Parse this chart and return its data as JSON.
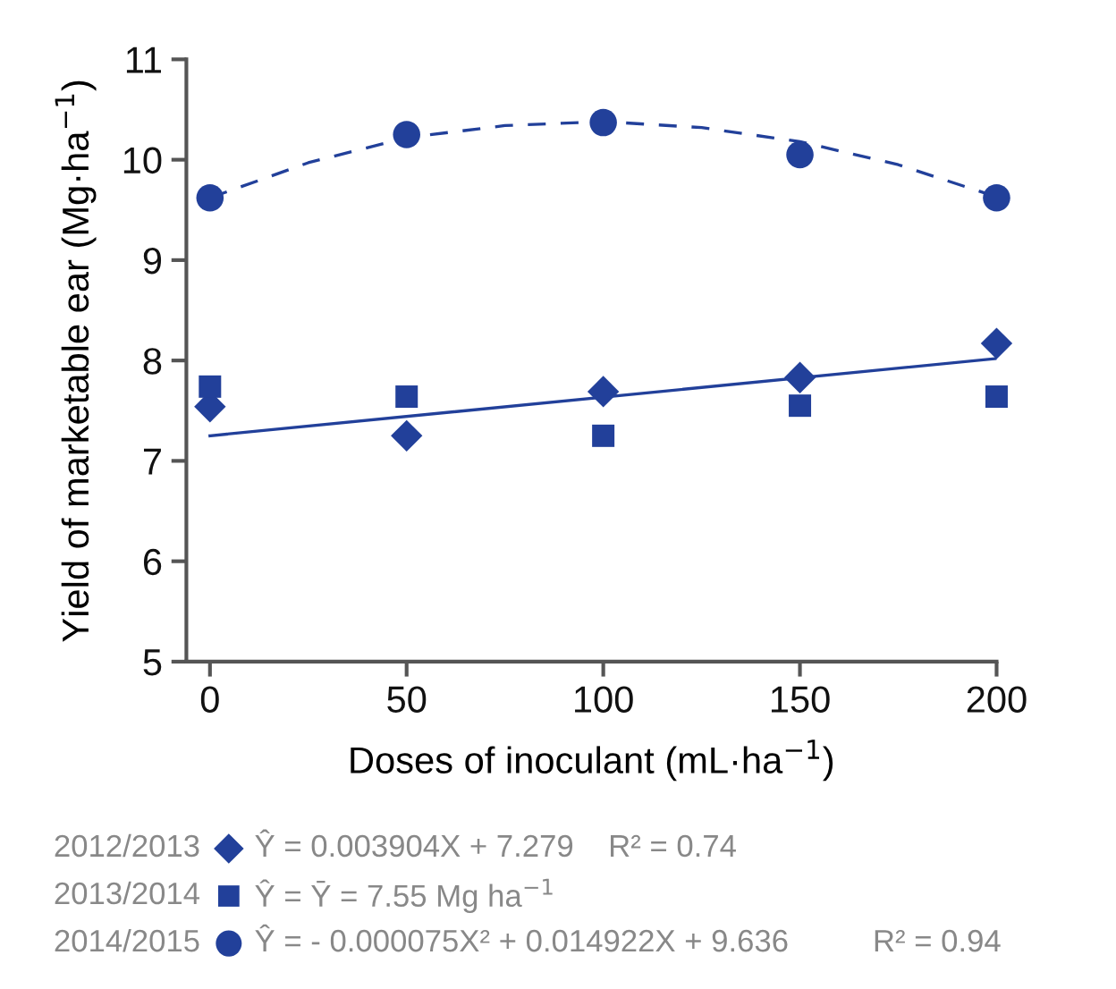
{
  "chart_data": {
    "type": "scatter",
    "xlabel": "Doses of inoculant (mL·ha$^{−1}$)",
    "ylabel": "Yield of marketable ear (Mg·ha$^{−1}$)",
    "x": [
      0,
      50,
      100,
      150,
      200
    ],
    "xlim": [
      -6,
      200
    ],
    "xticks": [
      0,
      50,
      100,
      150,
      200
    ],
    "ylim": [
      5,
      11
    ],
    "yticks": [
      5,
      6,
      7,
      8,
      9,
      10,
      11
    ],
    "grid": false,
    "legend": "bottom",
    "series": [
      {
        "name": "2012/2013",
        "color": "#22409a",
        "marker": "diamond",
        "values": [
          7.54,
          7.25,
          7.69,
          7.83,
          8.17
        ]
      },
      {
        "name": "2013/2014",
        "color": "#22409a",
        "marker": "square",
        "values": [
          7.74,
          7.64,
          7.25,
          7.55,
          7.64
        ]
      },
      {
        "name": "2014/2015",
        "color": "#22409a",
        "marker": "circle",
        "values": [
          9.62,
          10.25,
          10.37,
          10.05,
          9.62
        ]
      },
      {
        "type": "line",
        "color": "#22409a",
        "marker": "none",
        "line_style": "solid",
        "x": [
          0,
          200
        ],
        "values": [
          7.25,
          8.02
        ]
      },
      {
        "type": "line",
        "color": "#22409a",
        "marker": "none",
        "line_style": "dashed",
        "x": [
          0,
          25,
          50,
          75,
          100,
          125,
          150,
          175,
          200
        ],
        "values": [
          9.62,
          9.97,
          10.22,
          10.34,
          10.38,
          10.32,
          10.18,
          9.95,
          9.63
        ]
      }
    ],
    "annotations": [
      "Ŷ = 0.003904X + 7.279",
      "R² = 0.74",
      "Ŷ = Ȳ = 7.55 Mg ha$^{−1}$",
      "Ŷ = - 0.000075X² + 0.014922X + 9.636",
      "R² = 0.94"
    ]
  }
}
